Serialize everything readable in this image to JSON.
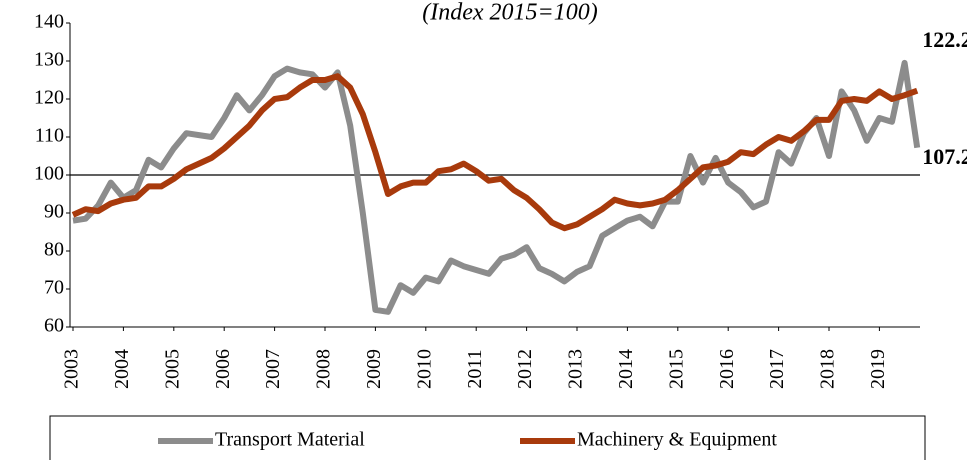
{
  "chart_data": {
    "type": "line",
    "title": "(Index 2015=100)",
    "categories": [
      "2003",
      null,
      null,
      null,
      "2004",
      null,
      null,
      null,
      "2005",
      null,
      null,
      null,
      "2006",
      null,
      null,
      null,
      "2007",
      null,
      null,
      null,
      "2008",
      null,
      null,
      null,
      "2009",
      null,
      null,
      null,
      "2010",
      null,
      null,
      null,
      "2011",
      null,
      null,
      null,
      "2012",
      null,
      null,
      null,
      "2013",
      null,
      null,
      null,
      "2014",
      null,
      null,
      null,
      "2015",
      null,
      null,
      null,
      "2016",
      null,
      null,
      null,
      "2017",
      null,
      null,
      null,
      "2018",
      null,
      null,
      null,
      "2019",
      null,
      null,
      null
    ],
    "series": [
      {
        "name": "Transport Material",
        "color": "#8c8c8c",
        "values": [
          88,
          88.5,
          92,
          98,
          94,
          96,
          104,
          102,
          107,
          111,
          110.5,
          110,
          115,
          121,
          117,
          121,
          126,
          128,
          127,
          126.5,
          123,
          127,
          113,
          90,
          64.5,
          64,
          71,
          69,
          73,
          72,
          77.5,
          76,
          75,
          74,
          78,
          79,
          81,
          75.5,
          74,
          72,
          74.5,
          76,
          84,
          86,
          88,
          89,
          86.5,
          93,
          93,
          105,
          98,
          104.5,
          98,
          95.5,
          91.5,
          93,
          106,
          103,
          111,
          115,
          105,
          122,
          117,
          109,
          115,
          114,
          129.5,
          107.2
        ]
      },
      {
        "name": "Machinery & Equipment",
        "color": "#a83a0c",
        "values": [
          89.5,
          91,
          90.5,
          92.5,
          93.5,
          94,
          97,
          97,
          99,
          101.5,
          103,
          104.5,
          107,
          110,
          113,
          117,
          120,
          120.5,
          123,
          125,
          125,
          126,
          123,
          116,
          106,
          95,
          97,
          98,
          98,
          101,
          101.5,
          103,
          101,
          98.5,
          99,
          96,
          94,
          91,
          87.5,
          86,
          87,
          89,
          91,
          93.5,
          92.5,
          92,
          92.5,
          93.5,
          96,
          99,
          102,
          102.5,
          103.5,
          106,
          105.5,
          108,
          110,
          109,
          111.5,
          114.5,
          114.5,
          119.5,
          120,
          119.5,
          122,
          120,
          121,
          122.2
        ]
      }
    ],
    "ylim": [
      60,
      140
    ],
    "yticks": [
      60,
      70,
      80,
      90,
      100,
      110,
      120,
      130,
      140
    ],
    "reference_line": 100,
    "legend": "bottom"
  }
}
